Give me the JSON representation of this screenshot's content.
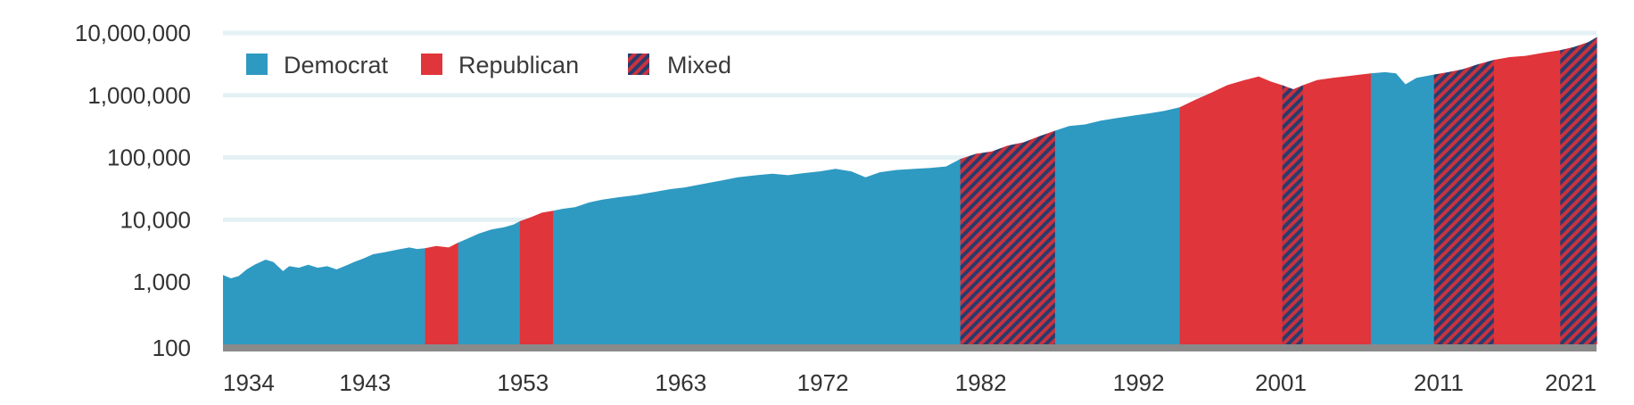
{
  "chart_data": {
    "type": "area",
    "title": "",
    "xlabel": "",
    "ylabel": "",
    "scale": {
      "y": "log"
    },
    "ylim": [
      100,
      10000000
    ],
    "xlim": [
      1934,
      2021
    ],
    "y_ticks": [
      {
        "value": 100,
        "label": "100"
      },
      {
        "value": 1000,
        "label": "1,000"
      },
      {
        "value": 10000,
        "label": "10,000"
      },
      {
        "value": 100000,
        "label": "100,000"
      },
      {
        "value": 1000000,
        "label": "1,000,000"
      },
      {
        "value": 10000000,
        "label": "10,000,000"
      }
    ],
    "x_ticks": [
      {
        "value": 1934,
        "label": "1934"
      },
      {
        "value": 1943,
        "label": "1943"
      },
      {
        "value": 1953,
        "label": "1953"
      },
      {
        "value": 1963,
        "label": "1963"
      },
      {
        "value": 1972,
        "label": "1972"
      },
      {
        "value": 1982,
        "label": "1982"
      },
      {
        "value": 1992,
        "label": "1992"
      },
      {
        "value": 2001,
        "label": "2001"
      },
      {
        "value": 2011,
        "label": "2011"
      },
      {
        "value": 2021,
        "label": "2021"
      }
    ],
    "grid": true,
    "legend": {
      "position": "top-left",
      "entries": [
        {
          "key": "democrat",
          "label": "Democrat"
        },
        {
          "key": "republican",
          "label": "Republican"
        },
        {
          "key": "mixed",
          "label": "Mixed"
        }
      ]
    },
    "colors": {
      "democrat": "#2e9ac2",
      "republican": "#e0353a",
      "mixed_base": "#283c6c",
      "mixed_stripe": "#c9323f",
      "grid": "#e3f1f5",
      "baseline": "#8a8a8a"
    },
    "periods": [
      {
        "start": 1934.0,
        "end": 1946.8,
        "party": "democrat"
      },
      {
        "start": 1946.8,
        "end": 1948.9,
        "party": "republican"
      },
      {
        "start": 1948.9,
        "end": 1952.8,
        "party": "democrat"
      },
      {
        "start": 1952.8,
        "end": 1954.9,
        "party": "republican"
      },
      {
        "start": 1954.9,
        "end": 1980.7,
        "party": "democrat"
      },
      {
        "start": 1980.7,
        "end": 1986.7,
        "party": "mixed"
      },
      {
        "start": 1986.7,
        "end": 1994.6,
        "party": "democrat"
      },
      {
        "start": 1994.6,
        "end": 2001.1,
        "party": "republican"
      },
      {
        "start": 2001.1,
        "end": 2002.4,
        "party": "mixed"
      },
      {
        "start": 2002.4,
        "end": 2006.7,
        "party": "republican"
      },
      {
        "start": 2006.7,
        "end": 2010.7,
        "party": "democrat"
      },
      {
        "start": 2010.7,
        "end": 2014.5,
        "party": "mixed"
      },
      {
        "start": 2014.5,
        "end": 2018.7,
        "party": "republican"
      },
      {
        "start": 2018.7,
        "end": 2021.6,
        "party": "mixed"
      }
    ],
    "series": {
      "x": [
        1934.0,
        1934.5,
        1935.0,
        1935.5,
        1936.0,
        1936.7,
        1937.2,
        1937.8,
        1938.2,
        1938.8,
        1939.4,
        1940.0,
        1940.6,
        1941.2,
        1941.8,
        1942.3,
        1942.9,
        1943.5,
        1944.2,
        1945.0,
        1945.8,
        1946.3,
        1946.8,
        1947.5,
        1948.3,
        1948.9,
        1949.5,
        1950.2,
        1951.0,
        1951.8,
        1952.4,
        1952.8,
        1953.5,
        1954.2,
        1954.9,
        1955.5,
        1956.3,
        1957.2,
        1958.0,
        1959.0,
        1960.2,
        1961.3,
        1962.3,
        1963.2,
        1964.5,
        1965.6,
        1966.6,
        1967.8,
        1968.8,
        1969.8,
        1970.7,
        1971.8,
        1972.8,
        1973.8,
        1974.7,
        1975.6,
        1976.6,
        1977.8,
        1978.8,
        1979.8,
        1980.7,
        1981.7,
        1982.7,
        1983.7,
        1984.7,
        1985.7,
        1986.7,
        1987.6,
        1988.6,
        1989.6,
        1990.6,
        1991.6,
        1992.6,
        1993.6,
        1994.6,
        1995.6,
        1996.6,
        1997.6,
        1998.7,
        1999.6,
        2000.4,
        2001.1,
        2001.8,
        2002.4,
        2003.3,
        2004.3,
        2005.4,
        2006.7,
        2007.6,
        2008.3,
        2008.9,
        2009.6,
        2010.7,
        2011.6,
        2012.5,
        2013.4,
        2014.5,
        2015.5,
        2016.5,
        2017.6,
        2018.7,
        2019.6,
        2020.5,
        2021.6
      ],
      "y": [
        1300,
        1150,
        1250,
        1600,
        1900,
        2300,
        2100,
        1500,
        1800,
        1700,
        1900,
        1700,
        1800,
        1600,
        1850,
        2100,
        2400,
        2800,
        3000,
        3300,
        3600,
        3400,
        3500,
        3800,
        3600,
        4300,
        5000,
        6000,
        7000,
        7600,
        8400,
        9500,
        11000,
        13000,
        14000,
        15000,
        16000,
        19000,
        21000,
        23000,
        25000,
        28000,
        31000,
        33000,
        38000,
        43000,
        48000,
        52000,
        55000,
        52000,
        56000,
        60000,
        66000,
        60000,
        48000,
        58000,
        63000,
        66000,
        68000,
        72000,
        95000,
        115000,
        125000,
        155000,
        175000,
        220000,
        270000,
        320000,
        340000,
        390000,
        430000,
        470000,
        510000,
        560000,
        640000,
        850000,
        1100000,
        1450000,
        1750000,
        2000000,
        1650000,
        1450000,
        1250000,
        1450000,
        1750000,
        1900000,
        2050000,
        2250000,
        2350000,
        2250000,
        1500000,
        1900000,
        2150000,
        2350000,
        2600000,
        3100000,
        3700000,
        4100000,
        4300000,
        4800000,
        5300000,
        6000000,
        7200000,
        10500000
      ]
    }
  }
}
